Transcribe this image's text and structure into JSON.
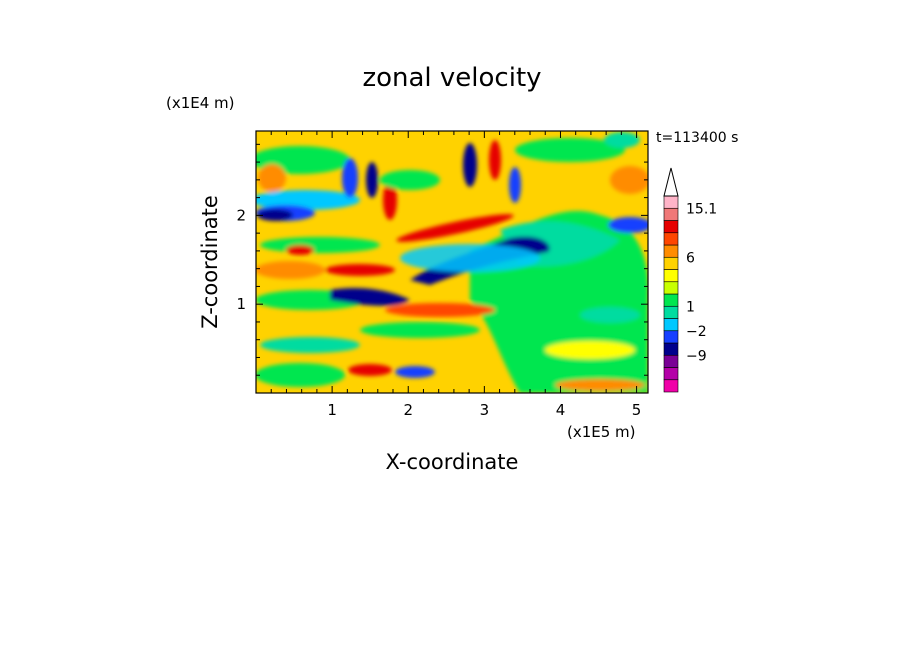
{
  "chart_data": {
    "type": "heatmap",
    "title": "zonal velocity",
    "xlabel": "X-coordinate",
    "ylabel": "Z-coordinate",
    "x_unit": "(x1E5 m)",
    "y_unit": "(x1E4 m)",
    "time_label": "t=113400 s",
    "xlim": [
      0,
      5.15
    ],
    "ylim": [
      0,
      2.95
    ],
    "x_ticks": [
      1,
      2,
      3,
      4,
      5
    ],
    "y_ticks": [
      1,
      2
    ],
    "colorbar": {
      "tick_labels": [
        "15.1",
        "6",
        "1",
        "−2",
        "−9"
      ],
      "colors_bottom_to_top": [
        "#f000a8",
        "#b400a8",
        "#7a0096",
        "#00008c",
        "#1640ff",
        "#00c8ff",
        "#00dca0",
        "#00e650",
        "#c8ff00",
        "#ffff00",
        "#ffd200",
        "#ff8c00",
        "#ff4600",
        "#e60000",
        "#f07878",
        "#ffb4c8"
      ]
    }
  }
}
